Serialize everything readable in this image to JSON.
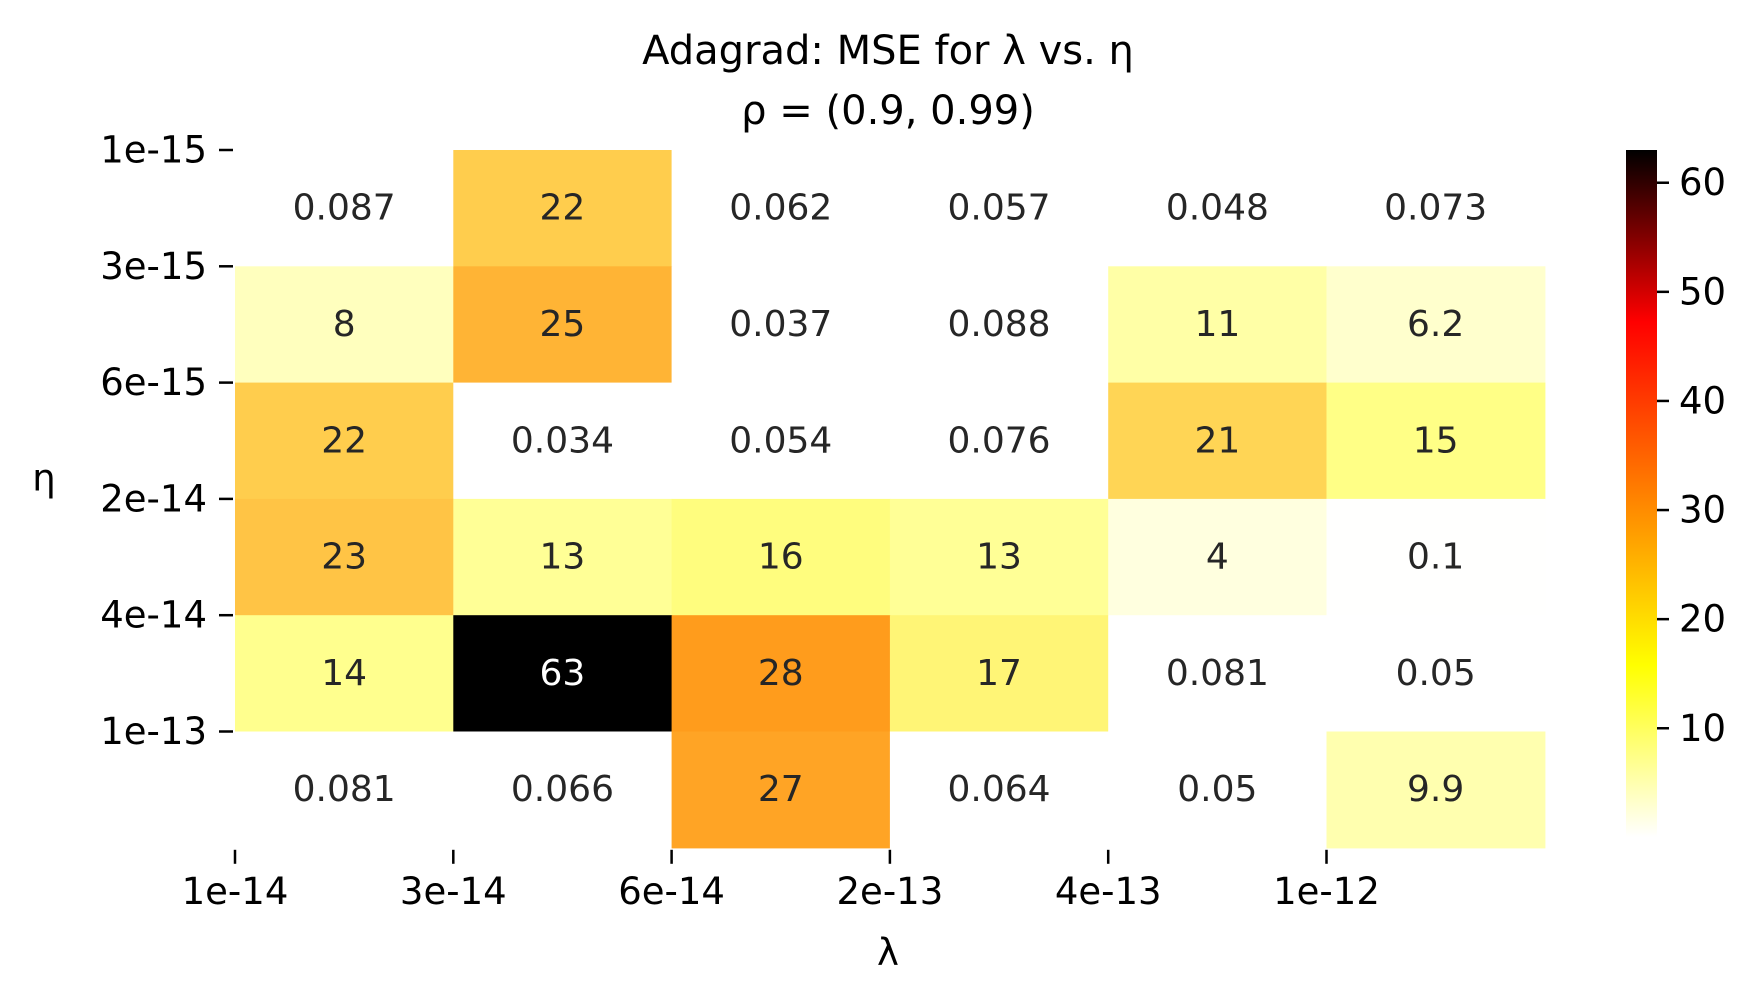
{
  "chart_data": {
    "type": "heatmap",
    "title": "Adagrad: MSE for λ vs. η",
    "subtitle": "ρ = (0.9, 0.99)",
    "xlabel": "λ",
    "ylabel": "η",
    "x_tick_labels": [
      "1e-14",
      "3e-14",
      "6e-14",
      "2e-13",
      "4e-13",
      "1e-12"
    ],
    "y_tick_labels": [
      "1e-15",
      "3e-15",
      "6e-15",
      "2e-14",
      "4e-14",
      "1e-13"
    ],
    "rows": [
      {
        "values": [
          0.087,
          22,
          0.062,
          0.057,
          0.048,
          0.073
        ],
        "labels": [
          "0.087",
          "22",
          "0.062",
          "0.057",
          "0.048",
          "0.073"
        ]
      },
      {
        "values": [
          8,
          25,
          0.037,
          0.088,
          11,
          6.2
        ],
        "labels": [
          "8",
          "25",
          "0.037",
          "0.088",
          "11",
          "6.2"
        ]
      },
      {
        "values": [
          22,
          0.034,
          0.054,
          0.076,
          21,
          15
        ],
        "labels": [
          "22",
          "0.034",
          "0.054",
          "0.076",
          "21",
          "15"
        ]
      },
      {
        "values": [
          23,
          13,
          16,
          13,
          4,
          0.1
        ],
        "labels": [
          "23",
          "13",
          "16",
          "13",
          "4",
          "0.1"
        ]
      },
      {
        "values": [
          14,
          63,
          28,
          17,
          0.081,
          0.05
        ],
        "labels": [
          "14",
          "63",
          "28",
          "17",
          "0.081",
          "0.05"
        ]
      },
      {
        "values": [
          0.081,
          0.066,
          27,
          0.064,
          0.05,
          9.9
        ],
        "labels": [
          "0.081",
          "0.066",
          "27",
          "0.064",
          "0.05",
          "9.9"
        ]
      }
    ],
    "colormap": "afmhot_r",
    "colorbar": {
      "min": 0.034,
      "max": 63,
      "tick_values": [
        10,
        20,
        30,
        40,
        50,
        60
      ],
      "tick_labels": [
        "10",
        "20",
        "30",
        "40",
        "50",
        "60"
      ]
    },
    "grid": false,
    "legend": "colorbar-right"
  }
}
